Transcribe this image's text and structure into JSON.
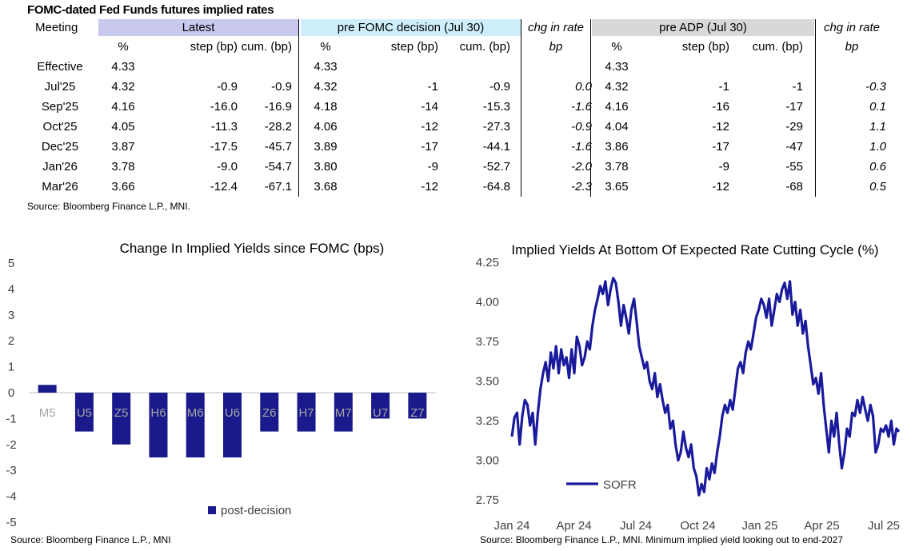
{
  "table": {
    "title": "FOMC-dated Fed Funds futures implied rates",
    "group_headers": {
      "meeting": "Meeting",
      "latest": "Latest",
      "pre_fomc": "pre FOMC decision (Jul 30)",
      "chg1": "chg in rate",
      "pre_adp": "pre ADP (Jul 30)",
      "chg2": "chg in rate"
    },
    "sub_headers": [
      "%",
      "step (bp)",
      "cum. (bp)",
      "%",
      "step (bp)",
      "cum. (bp)",
      "bp",
      "%",
      "step (bp)",
      "cum. (bp)",
      "bp"
    ],
    "rows": [
      [
        "Effective",
        "4.33",
        "",
        "",
        "4.33",
        "",
        "",
        "",
        "4.33",
        "",
        "",
        ""
      ],
      [
        "Jul'25",
        "4.32",
        "-0.9",
        "-0.9",
        "4.32",
        "-1",
        "-0.9",
        "0.0",
        "4.32",
        "-1",
        "-1",
        "-0.3"
      ],
      [
        "Sep'25",
        "4.16",
        "-16.0",
        "-16.9",
        "4.18",
        "-14",
        "-15.3",
        "-1.6",
        "4.16",
        "-16",
        "-17",
        "0.1"
      ],
      [
        "Oct'25",
        "4.05",
        "-11.3",
        "-28.2",
        "4.06",
        "-12",
        "-27.3",
        "-0.9",
        "4.04",
        "-12",
        "-29",
        "1.1"
      ],
      [
        "Dec'25",
        "3.87",
        "-17.5",
        "-45.7",
        "3.89",
        "-17",
        "-44.1",
        "-1.6",
        "3.86",
        "-17",
        "-47",
        "1.0"
      ],
      [
        "Jan'26",
        "3.78",
        "-9.0",
        "-54.7",
        "3.80",
        "-9",
        "-52.7",
        "-2.0",
        "3.78",
        "-9",
        "-55",
        "0.6"
      ],
      [
        "Mar'26",
        "3.66",
        "-12.4",
        "-67.1",
        "3.68",
        "-12",
        "-64.8",
        "-2.3",
        "3.65",
        "-12",
        "-68",
        "0.5"
      ]
    ],
    "source": "Source: Bloomberg Finance L.P., MNI.",
    "colors": {
      "latest_band": "#c9c8ee",
      "pre_fomc_band": "#cdeefa",
      "pre_adp_band": "#d8d8d8"
    }
  },
  "chart_data": [
    {
      "type": "bar",
      "title": "Change In Implied Yields since FOMC (bps)",
      "categories": [
        "M5",
        "U5",
        "Z5",
        "H6",
        "M6",
        "U6",
        "Z6",
        "H7",
        "M7",
        "U7",
        "Z7"
      ],
      "series": [
        {
          "name": "post-decision",
          "values": [
            0.3,
            -1.5,
            -2.0,
            -2.5,
            -2.5,
            -2.5,
            -1.5,
            -1.5,
            -1.5,
            -1.0,
            -1.0
          ],
          "color": "#1a1a8c"
        }
      ],
      "ylim": [
        -5,
        5
      ],
      "yticks": [
        "5",
        "4",
        "3",
        "2",
        "1",
        "0",
        "-1",
        "-2",
        "-3",
        "-4",
        "-5"
      ],
      "xlabel": "",
      "ylabel": "",
      "legend": "bottom",
      "source": "Source: Bloomberg Finance L.P., MNI"
    },
    {
      "type": "line",
      "title": "Implied Yields At Bottom Of Expected Rate Cutting Cycle (%)",
      "series": [
        {
          "name": "SOFR",
          "color": "#1a1a9c",
          "points": [
            [
              0,
              3.15
            ],
            [
              2,
              3.27
            ],
            [
              4,
              3.3
            ],
            [
              6,
              3.1
            ],
            [
              8,
              3.28
            ],
            [
              10,
              3.38
            ],
            [
              12,
              3.35
            ],
            [
              14,
              3.22
            ],
            [
              16,
              3.3
            ],
            [
              18,
              3.1
            ],
            [
              20,
              3.3
            ],
            [
              22,
              3.45
            ],
            [
              24,
              3.55
            ],
            [
              26,
              3.62
            ],
            [
              28,
              3.5
            ],
            [
              30,
              3.68
            ],
            [
              32,
              3.58
            ],
            [
              34,
              3.72
            ],
            [
              36,
              3.55
            ],
            [
              38,
              3.7
            ],
            [
              40,
              3.6
            ],
            [
              42,
              3.65
            ],
            [
              44,
              3.52
            ],
            [
              46,
              3.7
            ],
            [
              48,
              3.55
            ],
            [
              50,
              3.78
            ],
            [
              52,
              3.72
            ],
            [
              54,
              3.6
            ],
            [
              56,
              3.65
            ],
            [
              58,
              3.75
            ],
            [
              60,
              3.7
            ],
            [
              62,
              3.85
            ],
            [
              64,
              3.95
            ],
            [
              66,
              4.02
            ],
            [
              68,
              4.1
            ],
            [
              70,
              4.05
            ],
            [
              72,
              4.13
            ],
            [
              74,
              3.98
            ],
            [
              76,
              4.08
            ],
            [
              78,
              4.15
            ],
            [
              80,
              4.12
            ],
            [
              82,
              4.0
            ],
            [
              84,
              3.85
            ],
            [
              86,
              3.98
            ],
            [
              88,
              3.9
            ],
            [
              90,
              3.8
            ],
            [
              92,
              3.95
            ],
            [
              94,
              4.02
            ],
            [
              96,
              3.88
            ],
            [
              98,
              3.72
            ],
            [
              100,
              3.65
            ],
            [
              102,
              3.58
            ],
            [
              104,
              3.62
            ],
            [
              106,
              3.5
            ],
            [
              108,
              3.45
            ],
            [
              110,
              3.55
            ],
            [
              112,
              3.4
            ],
            [
              114,
              3.48
            ],
            [
              116,
              3.38
            ],
            [
              118,
              3.3
            ],
            [
              120,
              3.35
            ],
            [
              122,
              3.2
            ],
            [
              124,
              3.25
            ],
            [
              126,
              3.1
            ],
            [
              128,
              3.0
            ],
            [
              130,
              3.05
            ],
            [
              132,
              3.18
            ],
            [
              134,
              3.08
            ],
            [
              136,
              3.02
            ],
            [
              138,
              3.1
            ],
            [
              140,
              2.95
            ],
            [
              142,
              2.9
            ],
            [
              144,
              2.78
            ],
            [
              146,
              2.85
            ],
            [
              148,
              2.8
            ],
            [
              150,
              2.95
            ],
            [
              152,
              2.88
            ],
            [
              154,
              2.98
            ],
            [
              156,
              2.92
            ],
            [
              158,
              3.05
            ],
            [
              160,
              3.15
            ],
            [
              162,
              3.28
            ],
            [
              164,
              3.35
            ],
            [
              166,
              3.3
            ],
            [
              168,
              3.38
            ],
            [
              170,
              3.32
            ],
            [
              172,
              3.45
            ],
            [
              174,
              3.58
            ],
            [
              176,
              3.62
            ],
            [
              178,
              3.55
            ],
            [
              180,
              3.68
            ],
            [
              182,
              3.75
            ],
            [
              184,
              3.7
            ],
            [
              186,
              3.8
            ],
            [
              188,
              3.9
            ],
            [
              190,
              3.95
            ],
            [
              192,
              4.02
            ],
            [
              194,
              3.98
            ],
            [
              196,
              3.9
            ],
            [
              198,
              4.02
            ],
            [
              200,
              3.85
            ],
            [
              202,
              3.95
            ],
            [
              204,
              4.05
            ],
            [
              206,
              4.0
            ],
            [
              208,
              4.08
            ],
            [
              210,
              4.12
            ],
            [
              212,
              4.02
            ],
            [
              214,
              4.13
            ],
            [
              216,
              3.92
            ],
            [
              218,
              4.0
            ],
            [
              220,
              3.85
            ],
            [
              222,
              3.95
            ],
            [
              224,
              3.8
            ],
            [
              226,
              3.88
            ],
            [
              228,
              3.72
            ],
            [
              230,
              3.6
            ],
            [
              232,
              3.48
            ],
            [
              234,
              3.52
            ],
            [
              236,
              3.42
            ],
            [
              238,
              3.55
            ],
            [
              240,
              3.35
            ],
            [
              242,
              3.2
            ],
            [
              244,
              3.05
            ],
            [
              246,
              3.25
            ],
            [
              248,
              3.15
            ],
            [
              250,
              3.3
            ],
            [
              252,
              3.1
            ],
            [
              254,
              2.95
            ],
            [
              256,
              3.05
            ],
            [
              258,
              3.2
            ],
            [
              260,
              3.15
            ],
            [
              262,
              3.3
            ],
            [
              264,
              3.28
            ],
            [
              266,
              3.38
            ],
            [
              268,
              3.3
            ],
            [
              270,
              3.4
            ],
            [
              272,
              3.32
            ],
            [
              274,
              3.25
            ],
            [
              276,
              3.35
            ],
            [
              278,
              3.28
            ],
            [
              280,
              3.05
            ],
            [
              282,
              3.1
            ],
            [
              284,
              3.2
            ],
            [
              286,
              3.18
            ],
            [
              288,
              3.22
            ],
            [
              290,
              3.15
            ],
            [
              292,
              3.25
            ],
            [
              294,
              3.1
            ],
            [
              296,
              3.2
            ],
            [
              298,
              3.18
            ]
          ]
        }
      ],
      "x_tick_labels": [
        "Jan 24",
        "Apr 24",
        "Jul 24",
        "Oct 24",
        "Jan 25",
        "Apr 25",
        "Jul 25"
      ],
      "x_tick_index": [
        0,
        50,
        100,
        150,
        200,
        250,
        295
      ],
      "ylim": [
        2.7,
        4.25
      ],
      "y_tick_values": [
        2.75,
        3.0,
        3.25,
        3.5,
        3.75,
        4.0,
        4.25
      ],
      "y_tick_labels": [
        "2.75",
        "3.00",
        "3.25",
        "3.50",
        "3.75",
        "4.00",
        "4.25"
      ],
      "legend": "bottom-left",
      "source": "Source: Bloomberg Finance L.P., MNI. Minimum implied yield looking out to end-2027"
    }
  ]
}
